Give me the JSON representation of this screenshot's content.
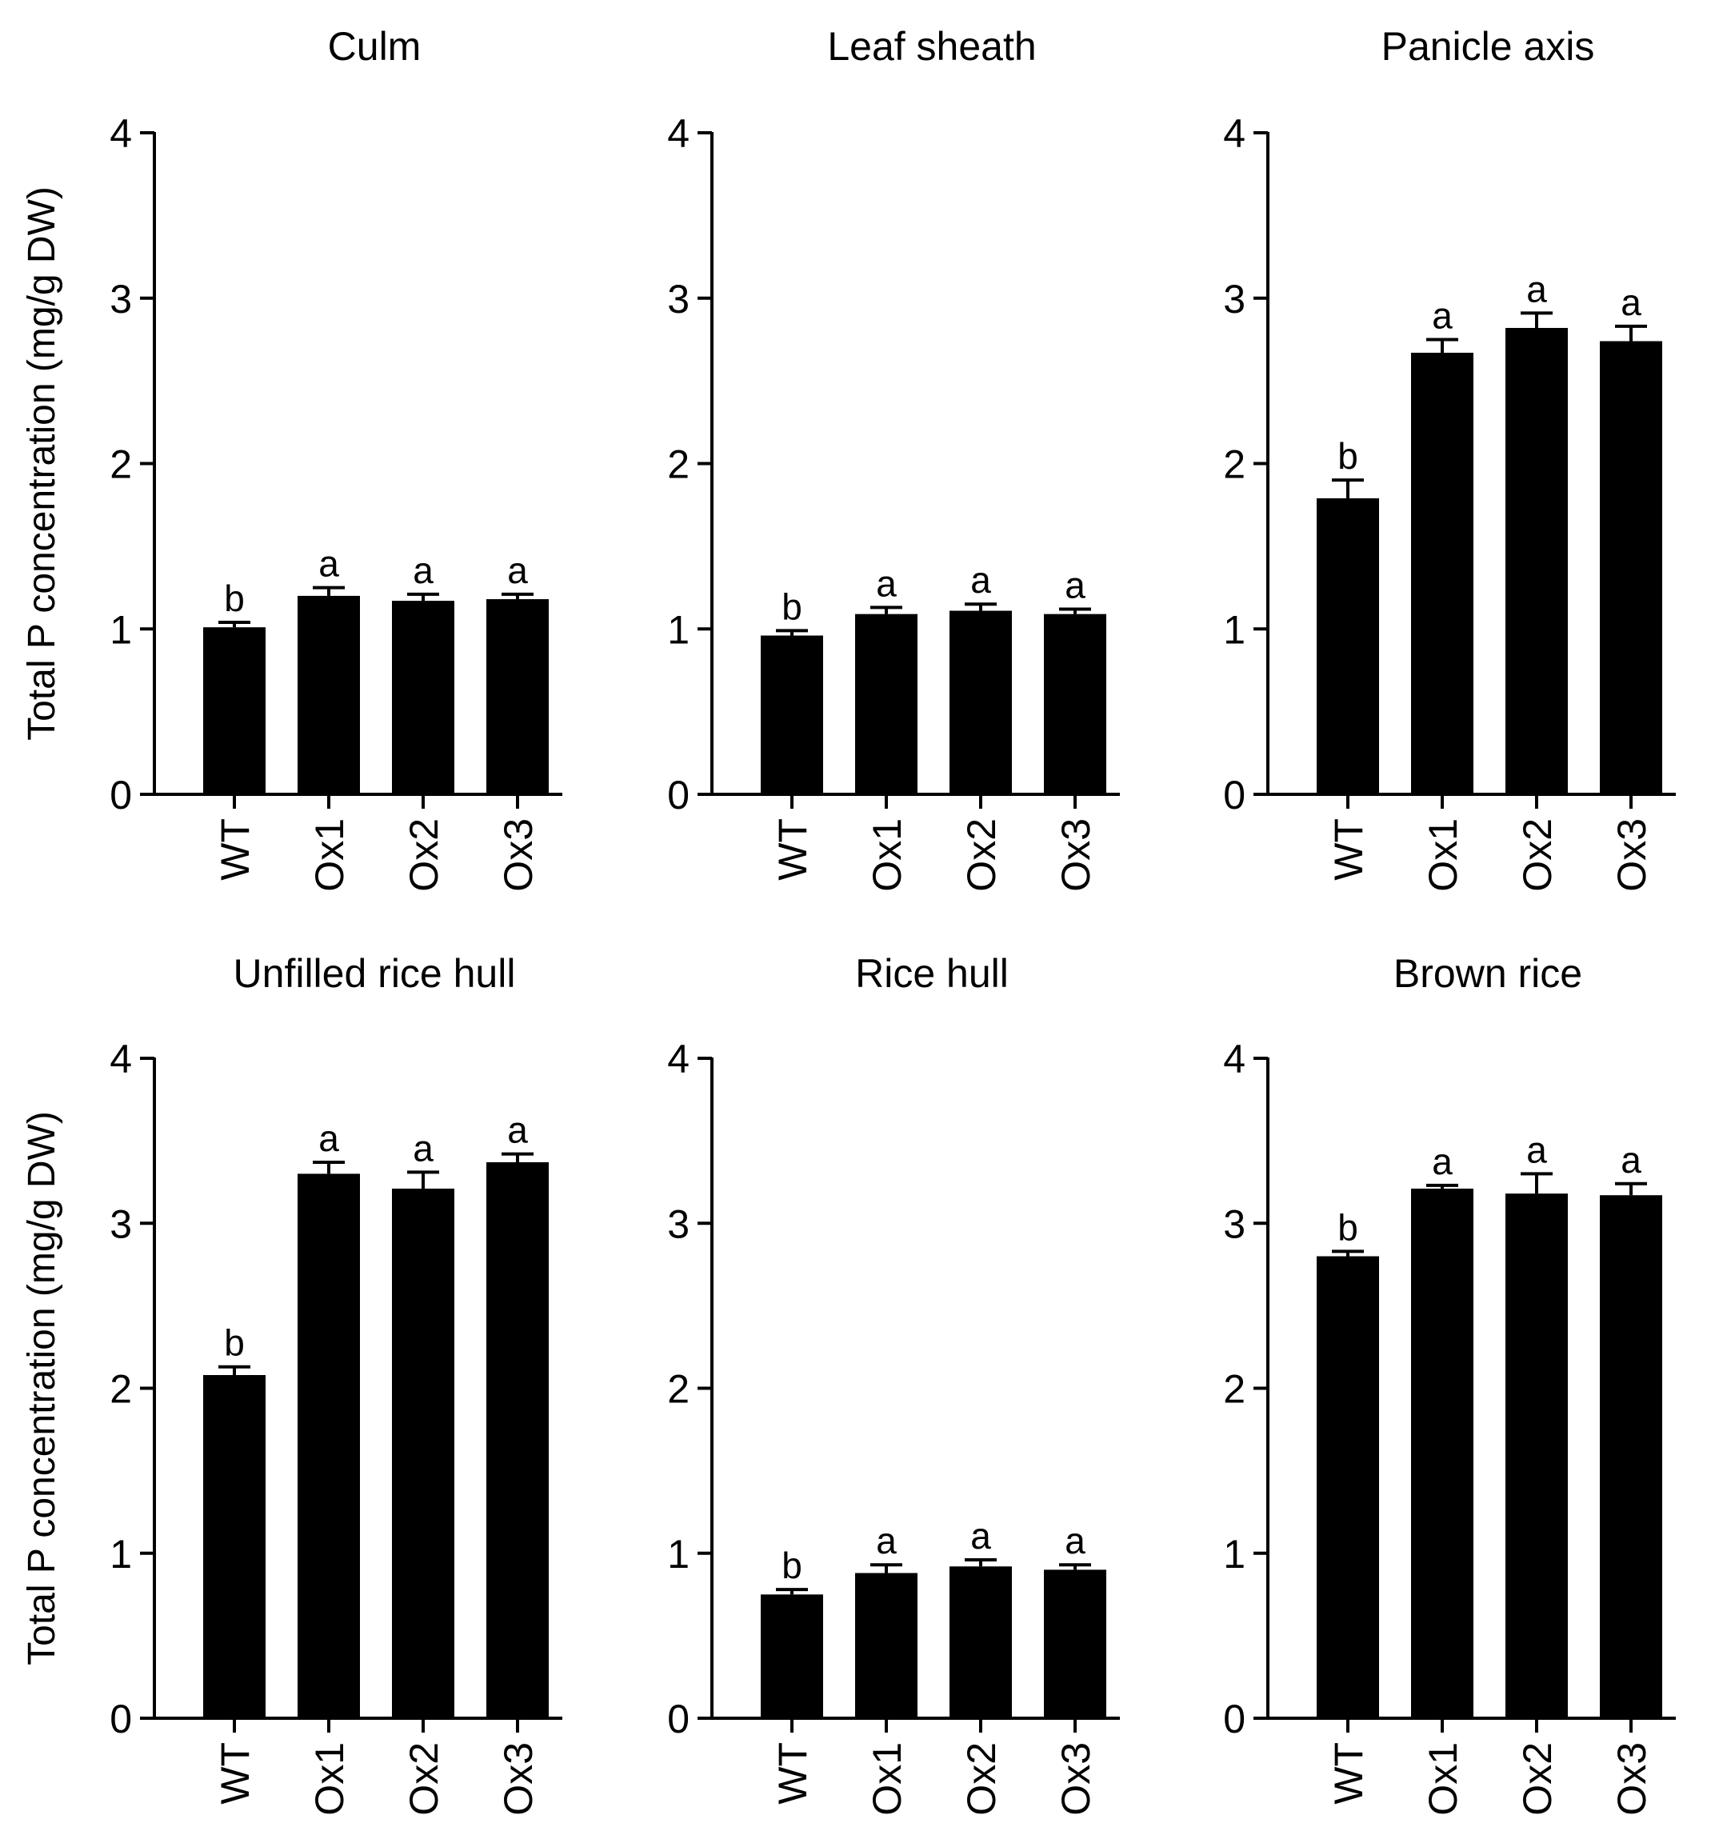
{
  "figure": {
    "y_axis_label": "Total P concentration (mg/g DW)",
    "bar_color": "#000000",
    "axis_color": "#000000"
  },
  "chart_data": [
    {
      "type": "bar",
      "title": "Culm",
      "categories": [
        "WT",
        "Ox1",
        "Ox2",
        "Ox3"
      ],
      "values": [
        1.01,
        1.2,
        1.17,
        1.18
      ],
      "errors": [
        0.03,
        0.05,
        0.04,
        0.03
      ],
      "significance": [
        "b",
        "a",
        "a",
        "a"
      ],
      "ylabel": "Total P concentration (mg/g DW)",
      "ylim": [
        0,
        4
      ],
      "yticks": [
        "0",
        "1",
        "2",
        "3",
        "4"
      ]
    },
    {
      "type": "bar",
      "title": "Leaf sheath",
      "categories": [
        "WT",
        "Ox1",
        "Ox2",
        "Ox3"
      ],
      "values": [
        0.96,
        1.09,
        1.11,
        1.09
      ],
      "errors": [
        0.03,
        0.04,
        0.04,
        0.03
      ],
      "significance": [
        "b",
        "a",
        "a",
        "a"
      ],
      "ylabel": "",
      "ylim": [
        0,
        4
      ],
      "yticks": [
        "0",
        "1",
        "2",
        "3",
        "4"
      ]
    },
    {
      "type": "bar",
      "title": "Panicle axis",
      "categories": [
        "WT",
        "Ox1",
        "Ox2",
        "Ox3"
      ],
      "values": [
        1.79,
        2.67,
        2.82,
        2.74
      ],
      "errors": [
        0.11,
        0.08,
        0.09,
        0.09
      ],
      "significance": [
        "b",
        "a",
        "a",
        "a"
      ],
      "ylabel": "",
      "ylim": [
        0,
        4
      ],
      "yticks": [
        "0",
        "1",
        "2",
        "3",
        "4"
      ]
    },
    {
      "type": "bar",
      "title": "Unfilled rice hull",
      "categories": [
        "WT",
        "Ox1",
        "Ox2",
        "Ox3"
      ],
      "values": [
        2.08,
        3.3,
        3.21,
        3.37
      ],
      "errors": [
        0.05,
        0.07,
        0.1,
        0.05
      ],
      "significance": [
        "b",
        "a",
        "a",
        "a"
      ],
      "ylabel": "Total P concentration (mg/g DW)",
      "ylim": [
        0,
        4
      ],
      "yticks": [
        "0",
        "1",
        "2",
        "3",
        "4"
      ]
    },
    {
      "type": "bar",
      "title": "Rice hull",
      "categories": [
        "WT",
        "Ox1",
        "Ox2",
        "Ox3"
      ],
      "values": [
        0.75,
        0.88,
        0.92,
        0.9
      ],
      "errors": [
        0.03,
        0.05,
        0.04,
        0.03
      ],
      "significance": [
        "b",
        "a",
        "a",
        "a"
      ],
      "ylabel": "",
      "ylim": [
        0,
        4
      ],
      "yticks": [
        "0",
        "1",
        "2",
        "3",
        "4"
      ]
    },
    {
      "type": "bar",
      "title": "Brown rice",
      "categories": [
        "WT",
        "Ox1",
        "Ox2",
        "Ox3"
      ],
      "values": [
        2.8,
        3.21,
        3.18,
        3.17
      ],
      "errors": [
        0.03,
        0.02,
        0.12,
        0.07
      ],
      "significance": [
        "b",
        "a",
        "a",
        "a"
      ],
      "ylabel": "",
      "ylim": [
        0,
        4
      ],
      "yticks": [
        "0",
        "1",
        "2",
        "3",
        "4"
      ]
    }
  ]
}
